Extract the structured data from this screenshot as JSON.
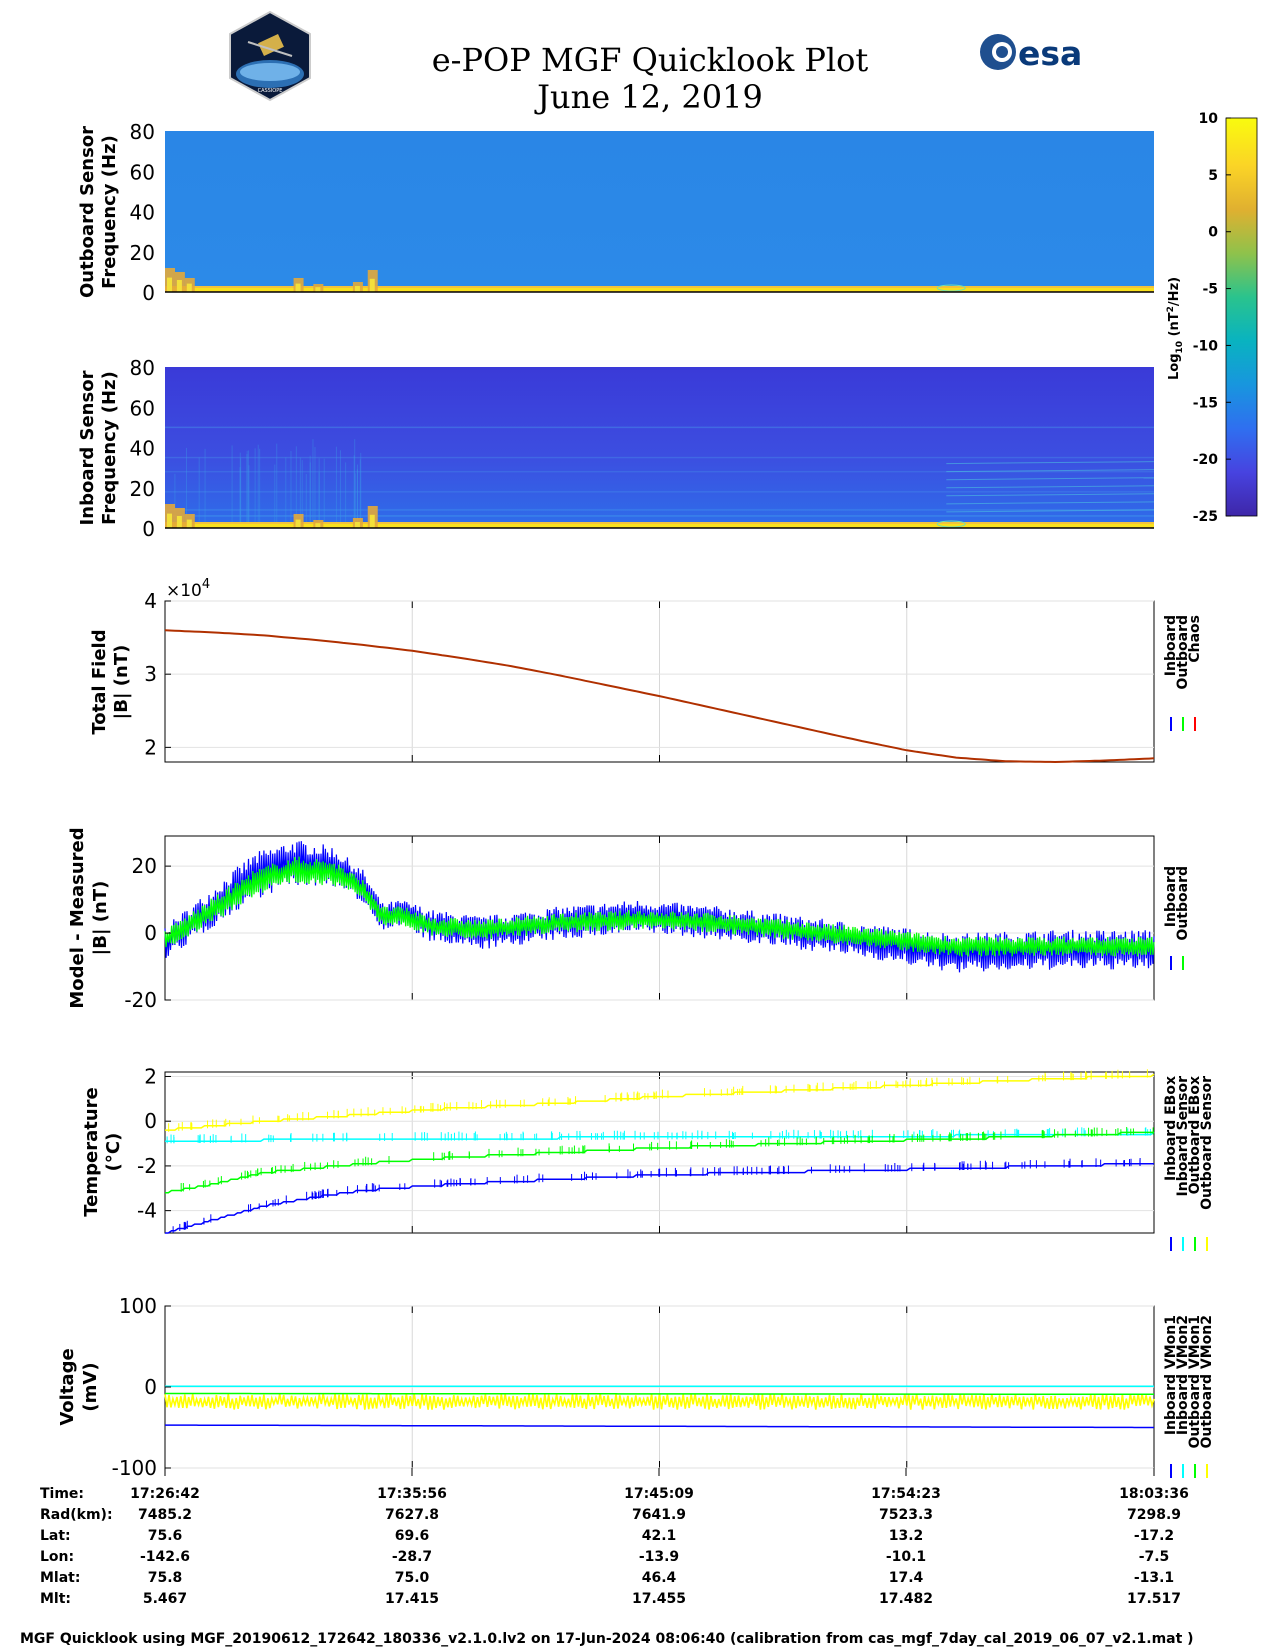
{
  "header": {
    "title_line1": "e-POP MGF Quicklook Plot",
    "title_line2": "June 12, 2019",
    "left_logo_text": "CASSIOPE",
    "right_logo_text": "esa"
  },
  "colorbar": {
    "label": "Log10 (nT^2/Hz)",
    "label_main": "Log",
    "label_sub": "10",
    "label_rest": "(nT",
    "label_sup": "2",
    "label_tail": "/Hz)",
    "ticks": [
      "10",
      "5",
      "0",
      "-5",
      "-10",
      "-15",
      "-20",
      "-25"
    ],
    "range": [
      -25,
      10
    ],
    "colormap": [
      "#3e26a8",
      "#4743e0",
      "#2f6ff0",
      "#1896de",
      "#09b3c0",
      "#2ac38d",
      "#8fc24b",
      "#e0b030",
      "#fbd426",
      "#f9fb0e"
    ]
  },
  "x_axis": {
    "tick_labels": [
      "17:26:42",
      "17:35:56",
      "17:45:09",
      "17:54:23",
      "18:03:36"
    ]
  },
  "ephemeris": {
    "rows": [
      {
        "label": "Time:",
        "values": [
          "17:26:42",
          "17:35:56",
          "17:45:09",
          "17:54:23",
          "18:03:36"
        ]
      },
      {
        "label": "Rad(km):",
        "values": [
          "7485.2",
          "7627.8",
          "7641.9",
          "7523.3",
          "7298.9"
        ]
      },
      {
        "label": "Lat:",
        "values": [
          "75.6",
          "69.6",
          "42.1",
          "13.2",
          "-17.2"
        ]
      },
      {
        "label": "Lon:",
        "values": [
          "-142.6",
          "-28.7",
          "-13.9",
          "-10.1",
          "-7.5"
        ]
      },
      {
        "label": "Mlat:",
        "values": [
          "75.8",
          "75.0",
          "46.4",
          "17.4",
          "-13.1"
        ]
      },
      {
        "label": "Mlt:",
        "values": [
          "5.467",
          "17.415",
          "17.455",
          "17.482",
          "17.517"
        ]
      }
    ]
  },
  "footer": "MGF Quicklook using MGF_20190612_172642_180336_v2.1.0.lv2 on 17-Jun-2024 08:06:40 (calibration from cas_mgf_7day_cal_2019_06_07_v2.1.mat )",
  "chart_data": [
    {
      "type": "heatmap",
      "ylabel": [
        "Outboard Sensor",
        "Frequency (Hz)"
      ],
      "ylim": [
        0,
        80
      ],
      "yticks": [
        "80",
        "60",
        "40",
        "20",
        "0"
      ],
      "background_level": -13,
      "low_freq_band_level": 6
    },
    {
      "type": "heatmap",
      "ylabel": [
        "Inboard Sensor",
        "Frequency (Hz)"
      ],
      "ylim": [
        0,
        80
      ],
      "yticks": [
        "80",
        "60",
        "40",
        "20",
        "0"
      ],
      "background_level": -21,
      "low_freq_band_level": 6
    },
    {
      "type": "line",
      "ylabel": [
        "Total Field",
        "|B| (nT)"
      ],
      "exponent_label": "×10",
      "exponent_power": "4",
      "ylim": [
        1.8,
        4.0
      ],
      "yticks": [
        "4",
        "3",
        "2"
      ],
      "legend": [
        "Inboard",
        "Outboard",
        "Chaos"
      ],
      "legend_colors": [
        "#0000ff",
        "#00ff00",
        "#ff0000"
      ],
      "series": [
        {
          "name": "Chaos",
          "color": "#b03000",
          "t": [
            0,
            0.05,
            0.1,
            0.15,
            0.2,
            0.25,
            0.3,
            0.35,
            0.4,
            0.45,
            0.5,
            0.55,
            0.6,
            0.65,
            0.7,
            0.75,
            0.8,
            0.85,
            0.9,
            0.95,
            1.0
          ],
          "values": [
            3.6,
            3.57,
            3.53,
            3.47,
            3.4,
            3.32,
            3.22,
            3.11,
            2.98,
            2.84,
            2.7,
            2.55,
            2.4,
            2.25,
            2.1,
            1.96,
            1.86,
            1.81,
            1.8,
            1.82,
            1.85
          ]
        }
      ]
    },
    {
      "type": "line",
      "ylabel": [
        "Model - Measured",
        "|B| (nT)"
      ],
      "ylim": [
        -20,
        29
      ],
      "yticks": [
        "20",
        "0",
        "-20"
      ],
      "legend": [
        "Inboard",
        "Outboard"
      ],
      "legend_colors": [
        "#0000ff",
        "#00ff00"
      ],
      "series": [
        {
          "name": "Inboard",
          "color": "#0000ff",
          "t": [
            0,
            0.05,
            0.09,
            0.13,
            0.17,
            0.2,
            0.22,
            0.24,
            0.27,
            0.32,
            0.4,
            0.48,
            0.56,
            0.7,
            0.8,
            0.9,
            1.0
          ],
          "values": [
            -3,
            8,
            17,
            21,
            20,
            14,
            5,
            6,
            2,
            0,
            3,
            5,
            3,
            -2,
            -6,
            -5,
            -5
          ],
          "spread": [
            5,
            6,
            7,
            7,
            6,
            5,
            4,
            4,
            5,
            5,
            5,
            5,
            5,
            5,
            6,
            6,
            6
          ]
        },
        {
          "name": "Outboard",
          "color": "#00ff00",
          "t": [
            0,
            0.05,
            0.09,
            0.13,
            0.17,
            0.2,
            0.22,
            0.24,
            0.27,
            0.32,
            0.4,
            0.48,
            0.56,
            0.7,
            0.8,
            0.9,
            1.0
          ],
          "values": [
            -2,
            7,
            15,
            19,
            18,
            13,
            5,
            5,
            2,
            1,
            3,
            4,
            3,
            -1,
            -4,
            -4,
            -4
          ],
          "spread": [
            3,
            4,
            4,
            4,
            4,
            3,
            3,
            3,
            3,
            3,
            3,
            3,
            3,
            3,
            3,
            3,
            3
          ]
        }
      ]
    },
    {
      "type": "line",
      "ylabel": [
        "Temperature",
        "(°C)"
      ],
      "ylim": [
        -5,
        2.2
      ],
      "yticks": [
        "2",
        "0",
        "-2",
        "-4"
      ],
      "legend": [
        "Inboard EBox",
        "Inboard Sensor",
        "Outboard EBox",
        "Outboard Sensor"
      ],
      "legend_colors": [
        "#0000ff",
        "#00ffff",
        "#00ff00",
        "#ffff00"
      ],
      "series": [
        {
          "name": "Inboard EBox",
          "color": "#0000ff",
          "t": [
            0,
            0.05,
            0.1,
            0.15,
            0.2,
            0.3,
            0.4,
            0.5,
            0.6,
            0.7,
            0.8,
            0.9,
            1.0
          ],
          "values": [
            -5.0,
            -4.4,
            -3.8,
            -3.4,
            -3.1,
            -2.8,
            -2.6,
            -2.4,
            -2.3,
            -2.2,
            -2.1,
            -2.0,
            -1.9
          ]
        },
        {
          "name": "Inboard Sensor",
          "color": "#00ffff",
          "t": [
            0,
            0.2,
            0.4,
            0.6,
            0.8,
            1.0
          ],
          "values": [
            -0.9,
            -0.8,
            -0.75,
            -0.7,
            -0.65,
            -0.55
          ]
        },
        {
          "name": "Outboard EBox",
          "color": "#00ff00",
          "t": [
            0,
            0.05,
            0.1,
            0.2,
            0.3,
            0.4,
            0.5,
            0.6,
            0.7,
            0.8,
            0.9,
            1.0
          ],
          "values": [
            -3.2,
            -2.8,
            -2.3,
            -1.9,
            -1.6,
            -1.4,
            -1.2,
            -1.05,
            -0.9,
            -0.8,
            -0.65,
            -0.5
          ]
        },
        {
          "name": "Outboard Sensor",
          "color": "#ffff00",
          "t": [
            0,
            0.1,
            0.2,
            0.3,
            0.4,
            0.5,
            0.6,
            0.7,
            0.8,
            0.9,
            1.0
          ],
          "values": [
            -0.4,
            0.0,
            0.3,
            0.6,
            0.8,
            1.1,
            1.3,
            1.5,
            1.7,
            1.9,
            2.05
          ]
        }
      ]
    },
    {
      "type": "line",
      "ylabel": [
        "Voltage",
        "(mV)"
      ],
      "ylim": [
        -100,
        100
      ],
      "yticks": [
        "100",
        "0",
        "-100"
      ],
      "legend": [
        "Inboard VMon1",
        "Inboard VMon2",
        "Outboard VMon1",
        "Outboard VMon2"
      ],
      "legend_colors": [
        "#0000ff",
        "#00ffff",
        "#00ff00",
        "#ffff00"
      ],
      "series": [
        {
          "name": "Inboard VMon1",
          "color": "#0000ff",
          "t": [
            0,
            1
          ],
          "values": [
            -47,
            -50
          ]
        },
        {
          "name": "Inboard VMon2",
          "color": "#00ffff",
          "t": [
            0,
            1
          ],
          "values": [
            1,
            1
          ]
        },
        {
          "name": "Outboard VMon1",
          "color": "#00ff00",
          "t": [
            0,
            1
          ],
          "values": [
            -8,
            -9
          ]
        },
        {
          "name": "Outboard VMon2",
          "color": "#ffff00",
          "t": [
            0,
            1
          ],
          "values": [
            -18,
            -18
          ],
          "spread": 10
        }
      ]
    }
  ]
}
